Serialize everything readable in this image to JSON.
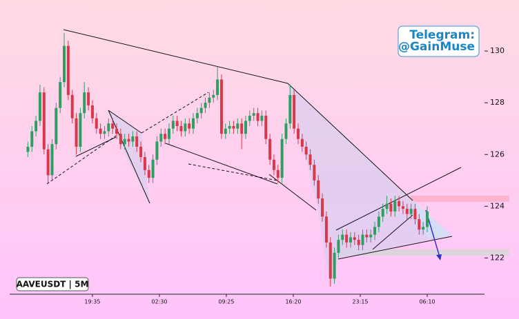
{
  "chart_data": {
    "type": "candlestick",
    "annotations": {
      "watermark": [
        "Telegram:",
        "@GainMuse"
      ],
      "symbol": "AAVEUSDT | 5M"
    },
    "up_color": "#2e9e63",
    "down_color": "#d8384a",
    "xlim": [
      -513,
      2430
    ],
    "ylim": [
      120.6,
      131.6
    ],
    "xticks": [
      {
        "value": 0,
        "label": "19:35"
      },
      {
        "value": 415,
        "label": "02:30"
      },
      {
        "value": 830,
        "label": "09:25"
      },
      {
        "value": 1245,
        "label": "16:20"
      },
      {
        "value": 1660,
        "label": "23:15"
      },
      {
        "value": 2075,
        "label": "06:10"
      }
    ],
    "yticks": [
      122,
      124,
      126,
      128,
      130
    ],
    "x": [
      -400,
      -375,
      -350,
      -325,
      -300,
      -275,
      -250,
      -225,
      -200,
      -175,
      -150,
      -125,
      -100,
      -75,
      -50,
      -25,
      0,
      25,
      50,
      75,
      100,
      125,
      150,
      175,
      200,
      225,
      250,
      275,
      300,
      325,
      350,
      375,
      400,
      425,
      450,
      475,
      500,
      525,
      550,
      575,
      600,
      625,
      650,
      675,
      700,
      725,
      750,
      775,
      800,
      825,
      850,
      875,
      900,
      925,
      950,
      975,
      1000,
      1025,
      1050,
      1075,
      1100,
      1125,
      1150,
      1175,
      1200,
      1225,
      1250,
      1275,
      1300,
      1325,
      1350,
      1375,
      1400,
      1425,
      1450,
      1475,
      1500,
      1525,
      1550,
      1575,
      1600,
      1625,
      1650,
      1675,
      1700,
      1725,
      1750,
      1775,
      1800,
      1825,
      1850,
      1875,
      1900,
      1925,
      1950,
      1975,
      2000,
      2025,
      2050,
      2075
    ],
    "candles": [
      [
        126.1,
        126.5,
        125.9,
        126.3
      ],
      [
        126.3,
        127.1,
        126.1,
        126.9
      ],
      [
        126.9,
        127.5,
        126.7,
        127.3
      ],
      [
        127.3,
        128.7,
        127.1,
        128.4
      ],
      [
        128.4,
        128.6,
        126.0,
        126.2
      ],
      [
        126.2,
        126.4,
        124.9,
        125.2
      ],
      [
        125.2,
        126.6,
        125.0,
        126.4
      ],
      [
        126.4,
        128.0,
        126.2,
        127.8
      ],
      [
        127.8,
        129.0,
        127.6,
        128.8
      ],
      [
        128.8,
        130.7,
        128.6,
        130.2
      ],
      [
        130.2,
        130.4,
        128.1,
        128.3
      ],
      [
        128.3,
        128.5,
        127.2,
        127.4
      ],
      [
        127.4,
        127.6,
        126.0,
        126.3
      ],
      [
        126.3,
        127.8,
        126.1,
        127.6
      ],
      [
        127.6,
        128.8,
        127.4,
        128.4
      ],
      [
        128.4,
        128.6,
        127.7,
        127.9
      ],
      [
        127.9,
        128.1,
        127.2,
        127.4
      ],
      [
        127.4,
        127.6,
        126.8,
        127.0
      ],
      [
        127.0,
        127.2,
        126.6,
        126.8
      ],
      [
        126.8,
        127.1,
        126.6,
        126.9
      ],
      [
        126.9,
        127.4,
        126.7,
        127.2
      ],
      [
        127.2,
        127.4,
        126.8,
        127.0
      ],
      [
        127.0,
        127.2,
        126.6,
        126.8
      ],
      [
        126.8,
        127.0,
        126.2,
        126.4
      ],
      [
        126.4,
        126.8,
        126.2,
        126.6
      ],
      [
        126.6,
        126.8,
        126.3,
        126.5
      ],
      [
        126.5,
        126.9,
        126.3,
        126.7
      ],
      [
        126.7,
        126.9,
        126.1,
        126.3
      ],
      [
        126.3,
        126.5,
        125.7,
        125.9
      ],
      [
        125.9,
        126.1,
        125.2,
        125.4
      ],
      [
        125.4,
        125.6,
        124.9,
        125.1
      ],
      [
        125.1,
        126.0,
        124.9,
        125.8
      ],
      [
        125.8,
        126.7,
        125.6,
        126.5
      ],
      [
        126.5,
        127.0,
        126.3,
        126.8
      ],
      [
        126.8,
        127.0,
        126.4,
        126.6
      ],
      [
        126.6,
        127.2,
        126.4,
        127.0
      ],
      [
        127.0,
        127.5,
        126.8,
        127.3
      ],
      [
        127.3,
        127.5,
        126.9,
        127.1
      ],
      [
        127.1,
        127.3,
        126.7,
        126.9
      ],
      [
        126.9,
        127.4,
        126.7,
        127.2
      ],
      [
        127.2,
        127.4,
        126.8,
        127.0
      ],
      [
        127.0,
        127.6,
        126.8,
        127.4
      ],
      [
        127.4,
        127.8,
        127.2,
        127.6
      ],
      [
        127.6,
        128.0,
        127.4,
        127.8
      ],
      [
        127.8,
        128.2,
        127.6,
        128.0
      ],
      [
        128.0,
        128.4,
        127.8,
        128.2
      ],
      [
        128.2,
        128.5,
        128.0,
        128.3
      ],
      [
        128.3,
        129.4,
        128.1,
        128.9
      ],
      [
        128.9,
        129.1,
        126.6,
        126.8
      ],
      [
        126.8,
        127.2,
        126.6,
        127.0
      ],
      [
        127.0,
        127.3,
        126.8,
        127.1
      ],
      [
        127.1,
        127.3,
        126.8,
        127.0
      ],
      [
        127.0,
        127.4,
        126.8,
        127.2
      ],
      [
        127.2,
        127.4,
        126.2,
        126.8
      ],
      [
        126.8,
        127.5,
        126.6,
        127.3
      ],
      [
        127.3,
        127.7,
        127.1,
        127.5
      ],
      [
        127.5,
        127.8,
        127.3,
        127.6
      ],
      [
        127.6,
        127.8,
        127.1,
        127.3
      ],
      [
        127.3,
        127.7,
        127.1,
        127.5
      ],
      [
        127.5,
        127.7,
        126.4,
        126.6
      ],
      [
        126.6,
        126.8,
        125.6,
        125.8
      ],
      [
        125.8,
        126.0,
        125.2,
        125.4
      ],
      [
        125.4,
        125.6,
        124.9,
        125.1
      ],
      [
        125.1,
        126.8,
        124.9,
        126.6
      ],
      [
        126.6,
        127.4,
        126.4,
        127.2
      ],
      [
        127.2,
        128.7,
        127.0,
        128.3
      ],
      [
        128.3,
        128.5,
        126.8,
        127.0
      ],
      [
        127.0,
        127.2,
        126.4,
        126.6
      ],
      [
        126.6,
        126.8,
        126.1,
        126.3
      ],
      [
        126.3,
        126.5,
        125.8,
        126.0
      ],
      [
        126.0,
        126.2,
        125.4,
        125.6
      ],
      [
        125.6,
        125.8,
        124.8,
        125.0
      ],
      [
        125.0,
        125.2,
        124.1,
        124.3
      ],
      [
        124.3,
        124.5,
        123.4,
        123.6
      ],
      [
        123.6,
        123.8,
        122.4,
        122.6
      ],
      [
        122.6,
        122.8,
        120.9,
        121.2
      ],
      [
        121.2,
        122.4,
        121.0,
        122.2
      ],
      [
        122.2,
        122.9,
        122.0,
        122.7
      ],
      [
        122.7,
        123.1,
        122.5,
        122.9
      ],
      [
        122.9,
        123.1,
        122.4,
        122.6
      ],
      [
        122.6,
        123.0,
        122.4,
        122.8
      ],
      [
        122.8,
        123.0,
        122.5,
        122.7
      ],
      [
        122.7,
        122.9,
        122.3,
        122.5
      ],
      [
        122.5,
        123.1,
        122.3,
        122.9
      ],
      [
        122.9,
        123.1,
        122.6,
        122.8
      ],
      [
        122.8,
        123.1,
        122.6,
        122.9
      ],
      [
        122.9,
        123.4,
        122.7,
        123.2
      ],
      [
        123.2,
        123.8,
        123.0,
        123.6
      ],
      [
        123.6,
        124.1,
        123.4,
        123.9
      ],
      [
        123.9,
        124.4,
        123.7,
        124.1
      ],
      [
        124.1,
        124.3,
        123.6,
        123.8
      ],
      [
        123.8,
        124.4,
        123.6,
        124.2
      ],
      [
        124.2,
        124.4,
        123.8,
        124.0
      ],
      [
        124.0,
        124.2,
        123.7,
        123.9
      ],
      [
        123.9,
        124.1,
        123.5,
        123.7
      ],
      [
        123.7,
        124.1,
        123.5,
        123.9
      ],
      [
        123.9,
        124.1,
        123.3,
        123.5
      ],
      [
        123.5,
        123.7,
        122.9,
        123.1
      ],
      [
        123.1,
        123.4,
        122.9,
        123.2
      ],
      [
        123.2,
        124.0,
        123.0,
        123.8
      ]
    ]
  }
}
